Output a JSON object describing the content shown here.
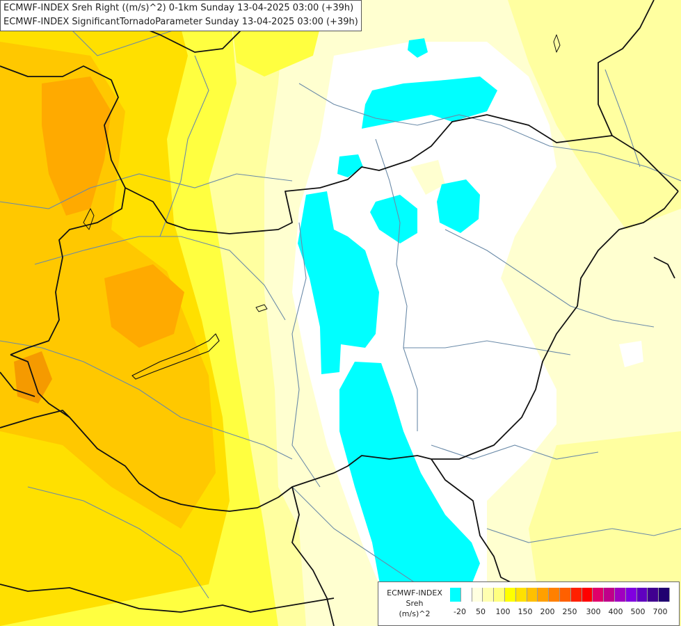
{
  "titles": {
    "line1": "ECMWF-INDEX Sreh Right ((m/s)^2) 0-1km Sunday 13-04-2025 03:00 (+39h)",
    "line2": "ECMWF-INDEX SignificantTornadoParameter Sunday 13-04-2025 03:00 (+39h)"
  },
  "legend": {
    "model": "ECMWF-INDEX",
    "parameter": "Sreh",
    "unit": "(m/s)^2",
    "colors": [
      "#00ffff",
      "#ffffff",
      "#ffffe0",
      "#ffffb0",
      "#ffff80",
      "#ffff00",
      "#ffe000",
      "#ffc000",
      "#ffa000",
      "#ff8000",
      "#ff6000",
      "#ff2000",
      "#ff0000",
      "#e0006a",
      "#c0008a",
      "#a000c0",
      "#8000e0",
      "#6000c0",
      "#400090",
      "#200070"
    ],
    "tick_labels": [
      "-20",
      "50",
      "100",
      "150",
      "200",
      "250",
      "300",
      "400",
      "500",
      "700"
    ]
  },
  "colors": {
    "cyan": "#00ffff",
    "white": "#ffffff",
    "pale_yellow": "#ffffd0",
    "light_yellow": "#ffffa0",
    "yellow": "#ffff40",
    "gold": "#ffe000",
    "orange_yellow": "#ffc800",
    "orange": "#ffaa00",
    "dark_orange": "#f59a00",
    "border": "#111111",
    "river": "#6a8aa8"
  }
}
